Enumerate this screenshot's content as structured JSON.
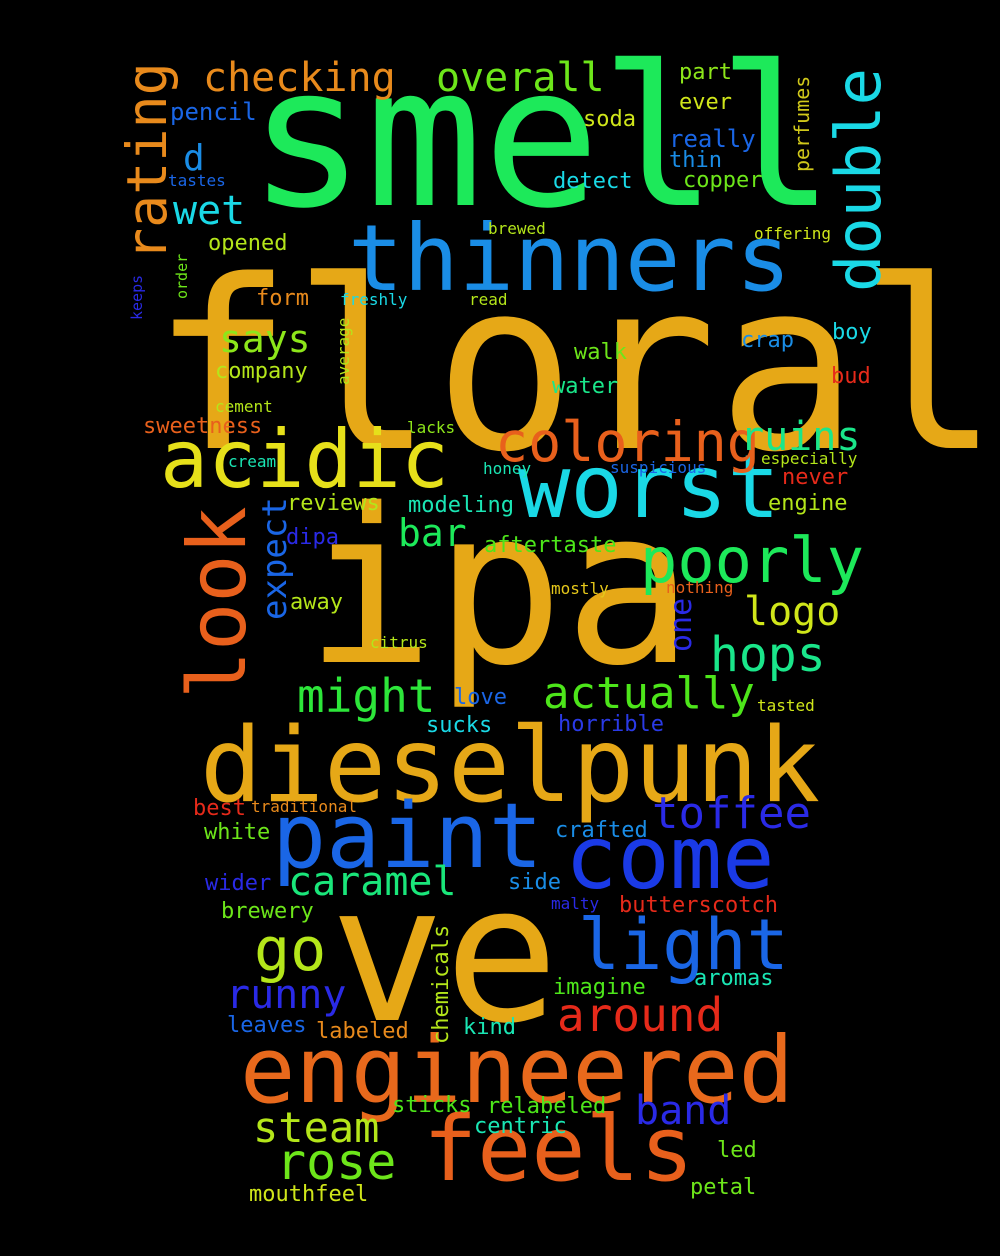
{
  "background_color": "#000000",
  "words": [
    {
      "text": "floral",
      "color": "#e6a817",
      "rotate": false
    },
    {
      "text": "smell",
      "color": "#1de95a",
      "rotate": false
    },
    {
      "text": "ipa",
      "color": "#e6a817",
      "rotate": false
    },
    {
      "text": "ve",
      "color": "#e6a817",
      "rotate": false
    },
    {
      "text": "dieselpunk",
      "color": "#e6a817",
      "rotate": false
    },
    {
      "text": "engineered",
      "color": "#e8691c",
      "rotate": false
    },
    {
      "text": "thinners",
      "color": "#1a8de6",
      "rotate": false
    },
    {
      "text": "worst",
      "color": "#1ad9e6",
      "rotate": false
    },
    {
      "text": "paint",
      "color": "#1a66e6",
      "rotate": false
    },
    {
      "text": "come",
      "color": "#1a3ae6",
      "rotate": false
    },
    {
      "text": "feels",
      "color": "#e8601c",
      "rotate": false
    },
    {
      "text": "acidic",
      "color": "#e6e01a",
      "rotate": false
    },
    {
      "text": "double",
      "color": "#1ad9e6",
      "rotate": true
    },
    {
      "text": "look",
      "color": "#e8601c",
      "rotate": true
    },
    {
      "text": "light",
      "color": "#1a66e6",
      "rotate": false
    },
    {
      "text": "coloring",
      "color": "#e8601c",
      "rotate": false
    },
    {
      "text": "rating",
      "color": "#e88a1c",
      "rotate": true
    },
    {
      "text": "poorly",
      "color": "#1de95a",
      "rotate": false
    },
    {
      "text": "go",
      "color": "#b4e61a",
      "rotate": false
    },
    {
      "text": "actually",
      "color": "#4de61a",
      "rotate": false
    },
    {
      "text": "rose",
      "color": "#6de61a",
      "rotate": false
    },
    {
      "text": "hops",
      "color": "#1ae68a",
      "rotate": false
    },
    {
      "text": "might",
      "color": "#2de63a",
      "rotate": false
    },
    {
      "text": "around",
      "color": "#e62a1a",
      "rotate": false
    },
    {
      "text": "runny",
      "color": "#2a2ae6",
      "rotate": false
    },
    {
      "text": "toffee",
      "color": "#2a2ae6",
      "rotate": false
    },
    {
      "text": "ruins",
      "color": "#1ae68a",
      "rotate": false
    },
    {
      "text": "steam",
      "color": "#b4e61a",
      "rotate": false
    },
    {
      "text": "caramel",
      "color": "#1ae67a",
      "rotate": false
    },
    {
      "text": "band",
      "color": "#2a2ae6",
      "rotate": false
    },
    {
      "text": "checking",
      "color": "#e88a1c",
      "rotate": false
    },
    {
      "text": "overall",
      "color": "#6de61a",
      "rotate": false
    },
    {
      "text": "logo",
      "color": "#d0e61a",
      "rotate": false
    },
    {
      "text": "wet",
      "color": "#1ad9e6",
      "rotate": false
    },
    {
      "text": "says",
      "color": "#8de61a",
      "rotate": false
    },
    {
      "text": "expect",
      "color": "#1a66e6",
      "rotate": true
    },
    {
      "text": "bar",
      "color": "#1de95a",
      "rotate": false
    },
    {
      "text": "one",
      "color": "#2a2ae6",
      "rotate": true
    },
    {
      "text": "d",
      "color": "#1a8de6",
      "rotate": false
    },
    {
      "text": "pencil",
      "color": "#1a66e6",
      "rotate": false
    },
    {
      "text": "part",
      "color": "#8de61a",
      "rotate": false
    },
    {
      "text": "ever",
      "color": "#d0e61a",
      "rotate": false
    },
    {
      "text": "soda",
      "color": "#d0e61a",
      "rotate": false
    },
    {
      "text": "really",
      "color": "#1a66e6",
      "rotate": false
    },
    {
      "text": "thin",
      "color": "#1a8de6",
      "rotate": false
    },
    {
      "text": "perfumes",
      "color": "#d0c81a",
      "rotate": true
    },
    {
      "text": "copper",
      "color": "#6de61a",
      "rotate": false
    },
    {
      "text": "detect",
      "color": "#1ad9e6",
      "rotate": false
    },
    {
      "text": "tastes",
      "color": "#1a66e6",
      "rotate": false
    },
    {
      "text": "brewed",
      "color": "#b4e61a",
      "rotate": false
    },
    {
      "text": "offering",
      "color": "#d0e61a",
      "rotate": false
    },
    {
      "text": "opened",
      "color": "#b4e61a",
      "rotate": false
    },
    {
      "text": "order",
      "color": "#6de61a",
      "rotate": true
    },
    {
      "text": "keeps",
      "color": "#2a2ae6",
      "rotate": true
    },
    {
      "text": "form",
      "color": "#e88a1c",
      "rotate": false
    },
    {
      "text": "freshly",
      "color": "#1ad9e6",
      "rotate": false
    },
    {
      "text": "read",
      "color": "#b4e61a",
      "rotate": false
    },
    {
      "text": "average",
      "color": "#b4e61a",
      "rotate": true
    },
    {
      "text": "boy",
      "color": "#1ad9e6",
      "rotate": false
    },
    {
      "text": "crap",
      "color": "#1a8de6",
      "rotate": false
    },
    {
      "text": "company",
      "color": "#b4e61a",
      "rotate": false
    },
    {
      "text": "walk",
      "color": "#6de61a",
      "rotate": false
    },
    {
      "text": "bud",
      "color": "#e62a1a",
      "rotate": false
    },
    {
      "text": "water",
      "color": "#1ae68a",
      "rotate": false
    },
    {
      "text": "cement",
      "color": "#b4e61a",
      "rotate": false
    },
    {
      "text": "sweetness",
      "color": "#e8601c",
      "rotate": false
    },
    {
      "text": "lacks",
      "color": "#8de61a",
      "rotate": false
    },
    {
      "text": "cream",
      "color": "#1ae6b4",
      "rotate": false
    },
    {
      "text": "honey",
      "color": "#1ae6b4",
      "rotate": false
    },
    {
      "text": "suspicious",
      "color": "#1a66e6",
      "rotate": false
    },
    {
      "text": "especially",
      "color": "#b4e61a",
      "rotate": false
    },
    {
      "text": "never",
      "color": "#e62a1a",
      "rotate": false
    },
    {
      "text": "reviews",
      "color": "#b4e61a",
      "rotate": false
    },
    {
      "text": "modeling",
      "color": "#1ae6b4",
      "rotate": false
    },
    {
      "text": "engine",
      "color": "#b4e61a",
      "rotate": false
    },
    {
      "text": "dipa",
      "color": "#2a2ae6",
      "rotate": false
    },
    {
      "text": "aftertaste",
      "color": "#4de61a",
      "rotate": false
    },
    {
      "text": "mostly",
      "color": "#e6c81a",
      "rotate": false
    },
    {
      "text": "nothing",
      "color": "#e8601c",
      "rotate": false
    },
    {
      "text": "away",
      "color": "#b4e61a",
      "rotate": false
    },
    {
      "text": "citrus",
      "color": "#b4e61a",
      "rotate": false
    },
    {
      "text": "love",
      "color": "#1a66e6",
      "rotate": false
    },
    {
      "text": "tasted",
      "color": "#d0e61a",
      "rotate": false
    },
    {
      "text": "sucks",
      "color": "#1ad9e6",
      "rotate": false
    },
    {
      "text": "horrible",
      "color": "#2a3ae6",
      "rotate": false
    },
    {
      "text": "best",
      "color": "#e62a1a",
      "rotate": false
    },
    {
      "text": "traditional",
      "color": "#e88a1c",
      "rotate": false
    },
    {
      "text": "white",
      "color": "#6de61a",
      "rotate": false
    },
    {
      "text": "crafted",
      "color": "#1a8de6",
      "rotate": false
    },
    {
      "text": "wider",
      "color": "#2a2ae6",
      "rotate": false
    },
    {
      "text": "side",
      "color": "#1a8de6",
      "rotate": false
    },
    {
      "text": "malty",
      "color": "#2a2ae6",
      "rotate": false
    },
    {
      "text": "butterscotch",
      "color": "#e62a1a",
      "rotate": false
    },
    {
      "text": "brewery",
      "color": "#6de61a",
      "rotate": false
    },
    {
      "text": "chemicals",
      "color": "#b4e61a",
      "rotate": true
    },
    {
      "text": "imagine",
      "color": "#4de61a",
      "rotate": false
    },
    {
      "text": "aromas",
      "color": "#1ae6b4",
      "rotate": false
    },
    {
      "text": "leaves",
      "color": "#1a66e6",
      "rotate": false
    },
    {
      "text": "labeled",
      "color": "#e88a1c",
      "rotate": false
    },
    {
      "text": "kind",
      "color": "#1ae6b4",
      "rotate": false
    },
    {
      "text": "sticks",
      "color": "#4de61a",
      "rotate": false
    },
    {
      "text": "relabeled",
      "color": "#4de61a",
      "rotate": false
    },
    {
      "text": "centric",
      "color": "#1ae6b4",
      "rotate": false
    },
    {
      "text": "led",
      "color": "#6de61a",
      "rotate": false
    },
    {
      "text": "mouthfeel",
      "color": "#d0e61a",
      "rotate": false
    },
    {
      "text": "petal",
      "color": "#6de61a",
      "rotate": false
    }
  ]
}
